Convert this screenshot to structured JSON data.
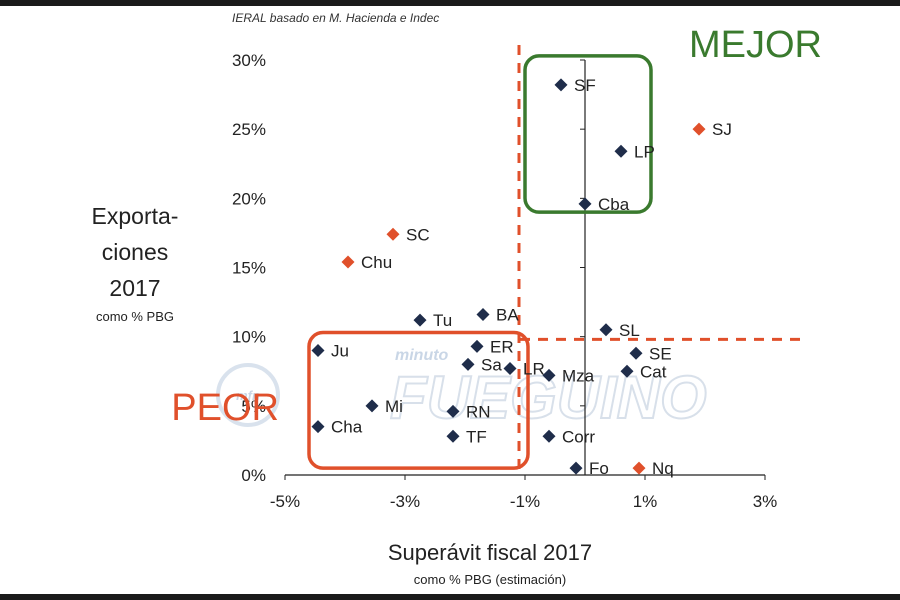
{
  "source_note": "IERAL basado en M. Hacienda e Indec",
  "watermark": {
    "brand": "FUEGUINO",
    "prefix": "minuto",
    "badge": "mfn"
  },
  "chart_data": {
    "type": "scatter",
    "xlabel": "Superávit fiscal 2017",
    "xlabel_sub": "como % PBG (estimación)",
    "ylabel_lines": [
      "Exporta-",
      "ciones",
      "2017"
    ],
    "ylabel_sub": "como % PBG",
    "xlim": [
      -5,
      3
    ],
    "ylim": [
      0,
      30
    ],
    "x_ticks": [
      -5,
      -3,
      -1,
      1,
      3
    ],
    "x_tick_labels": [
      "-5%",
      "-3%",
      "-1%",
      "1%",
      "3%"
    ],
    "y_ticks": [
      0,
      5,
      10,
      15,
      20,
      25,
      30
    ],
    "y_tick_labels": [
      "0%",
      "5%",
      "10%",
      "15%",
      "20%",
      "25%",
      "30%"
    ],
    "y_axis_at_x": 0,
    "reference_lines": {
      "x": -1.1,
      "y": 9.8,
      "color": "#e0502b"
    },
    "zones": [
      {
        "label": "MEJOR",
        "x_range": [
          -1.0,
          1.1
        ],
        "y_range": [
          19.0,
          30.3
        ],
        "color": "#3a7a2e"
      },
      {
        "label": "PEOR",
        "x_range": [
          -4.6,
          -0.95
        ],
        "y_range": [
          0.5,
          10.3
        ],
        "color": "#e0502b"
      }
    ],
    "colors": {
      "dark": "#1f2d4a",
      "orange": "#e0502b"
    },
    "points": [
      {
        "label": "SF",
        "x": -0.4,
        "y": 28.2,
        "color": "dark"
      },
      {
        "label": "LP",
        "x": 0.6,
        "y": 23.4,
        "color": "dark"
      },
      {
        "label": "Cba",
        "x": 0.0,
        "y": 19.6,
        "color": "dark"
      },
      {
        "label": "SJ",
        "x": 1.9,
        "y": 25.0,
        "color": "orange"
      },
      {
        "label": "SC",
        "x": -3.2,
        "y": 17.4,
        "color": "orange"
      },
      {
        "label": "Chu",
        "x": -3.95,
        "y": 15.4,
        "color": "orange"
      },
      {
        "label": "BA",
        "x": -1.7,
        "y": 11.6,
        "color": "dark"
      },
      {
        "label": "Tu",
        "x": -2.75,
        "y": 11.2,
        "color": "dark"
      },
      {
        "label": "SL",
        "x": 0.35,
        "y": 10.5,
        "color": "dark"
      },
      {
        "label": "Ju",
        "x": -4.45,
        "y": 9.0,
        "color": "dark"
      },
      {
        "label": "ER",
        "x": -1.8,
        "y": 9.3,
        "color": "dark"
      },
      {
        "label": "Sa",
        "x": -1.95,
        "y": 8.0,
        "color": "dark"
      },
      {
        "label": "LR",
        "x": -1.25,
        "y": 7.7,
        "color": "dark"
      },
      {
        "label": "SE",
        "x": 0.85,
        "y": 8.8,
        "color": "dark"
      },
      {
        "label": "Cat",
        "x": 0.7,
        "y": 7.5,
        "color": "dark"
      },
      {
        "label": "Mza",
        "x": -0.6,
        "y": 7.2,
        "color": "dark"
      },
      {
        "label": "Mi",
        "x": -3.55,
        "y": 5.0,
        "color": "dark"
      },
      {
        "label": "RN",
        "x": -2.2,
        "y": 4.6,
        "color": "dark"
      },
      {
        "label": "Cha",
        "x": -4.45,
        "y": 3.5,
        "color": "dark"
      },
      {
        "label": "TF",
        "x": -2.2,
        "y": 2.8,
        "color": "dark"
      },
      {
        "label": "Corr",
        "x": -0.6,
        "y": 2.8,
        "color": "dark"
      },
      {
        "label": "Fo",
        "x": -0.15,
        "y": 0.5,
        "color": "dark"
      },
      {
        "label": "Nq",
        "x": 0.9,
        "y": 0.5,
        "color": "orange"
      }
    ]
  }
}
